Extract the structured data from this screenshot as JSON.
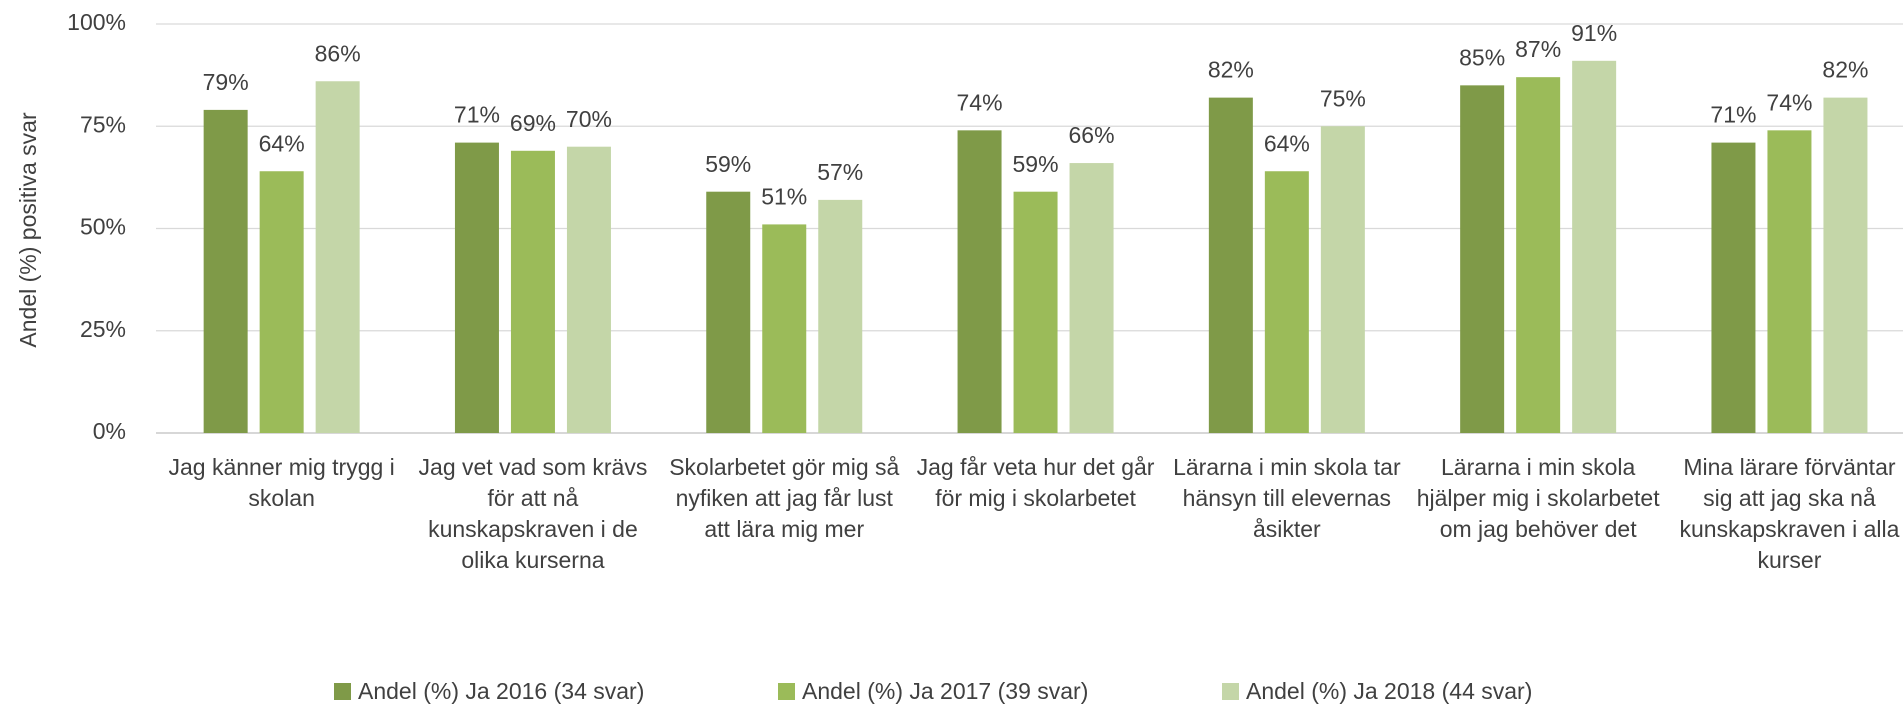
{
  "chart_data": {
    "type": "bar",
    "y_label": "Andel (%) positiva svar",
    "categories": [
      "Jag känner mig trygg i skolan",
      "Jag vet vad som krävs för att nå kunskapskraven i de olika kurserna",
      "Skolarbetet gör mig så nyfiken att jag får lust att lära mig mer",
      "Jag får veta hur det går för mig i skolarbetet",
      "Lärarna i min skola tar hänsyn till elevernas åsikter",
      "Lärarna i min skola hjälper mig i skolarbetet om jag behöver det",
      "Mina lärare förväntar sig att jag ska nå kunskapskraven i alla kurser"
    ],
    "series": [
      {
        "name": "Andel (%) Ja 2016 (34 svar)",
        "color": "#7f9a48",
        "values": [
          79,
          71,
          59,
          74,
          82,
          85,
          71
        ],
        "value_labels": [
          "79%",
          "71%",
          "59%",
          "74%",
          "82%",
          "85%",
          "71%"
        ]
      },
      {
        "name": "Andel (%) Ja 2017 (39 svar)",
        "color": "#9bbb59",
        "values": [
          64,
          69,
          51,
          59,
          64,
          87,
          74
        ],
        "value_labels": [
          "64%",
          "69%",
          "51%",
          "59%",
          "64%",
          "87%",
          "74%"
        ]
      },
      {
        "name": "Andel (%) Ja 2018 (44 svar)",
        "color": "#c4d6a8",
        "values": [
          86,
          70,
          57,
          66,
          75,
          91,
          82
        ],
        "value_labels": [
          "86%",
          "70%",
          "57%",
          "66%",
          "75%",
          "91%",
          "82%"
        ]
      }
    ],
    "ylim": [
      0,
      100
    ],
    "yticks": [
      {
        "value": 0,
        "label": "0%"
      },
      {
        "value": 25,
        "label": "25%"
      },
      {
        "value": 50,
        "label": "50%"
      },
      {
        "value": 75,
        "label": "75%"
      },
      {
        "value": 100,
        "label": "100%"
      }
    ],
    "grid": true,
    "legend": "bottom"
  }
}
